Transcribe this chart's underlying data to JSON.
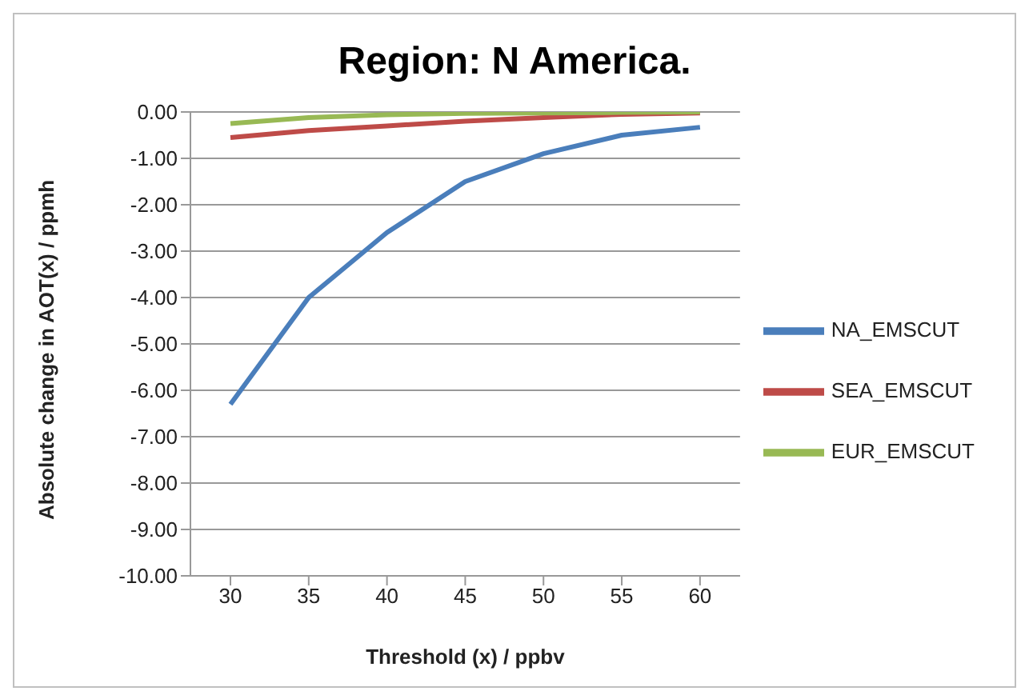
{
  "chart_data": {
    "type": "line",
    "title": "Region: N America.",
    "xlabel": "Threshold (x) / ppbv",
    "ylabel": "Absolute change  in AOT(x)  / ppmh",
    "categories": [
      "30",
      "35",
      "40",
      "45",
      "50",
      "55",
      "60"
    ],
    "series": [
      {
        "name": "NA_EMSCUT",
        "color": "#4a7ebb",
        "values": [
          -6.3,
          -4.0,
          -2.6,
          -1.5,
          -0.9,
          -0.5,
          -0.33
        ]
      },
      {
        "name": "SEA_EMSCUT",
        "color": "#be4b48",
        "values": [
          -0.55,
          -0.4,
          -0.3,
          -0.2,
          -0.12,
          -0.05,
          -0.02
        ]
      },
      {
        "name": "EUR_EMSCUT",
        "color": "#98b954",
        "values": [
          -0.25,
          -0.12,
          -0.06,
          -0.03,
          -0.02,
          -0.01,
          0
        ]
      }
    ],
    "ylim": [
      -10,
      0
    ],
    "yticks": [
      {
        "value": 0,
        "label": "0.00"
      },
      {
        "value": -1,
        "label": "-1.00"
      },
      {
        "value": -2,
        "label": "-2.00"
      },
      {
        "value": -3,
        "label": "-3.00"
      },
      {
        "value": -4,
        "label": "-4.00"
      },
      {
        "value": -5,
        "label": "-5.00"
      },
      {
        "value": -6,
        "label": "-6.00"
      },
      {
        "value": -7,
        "label": "-7.00"
      },
      {
        "value": -8,
        "label": "-8.00"
      },
      {
        "value": -9,
        "label": "-9.00"
      },
      {
        "value": -10,
        "label": "-10.00"
      }
    ],
    "grid": "y",
    "legend": "right",
    "marker": "none",
    "line_style": "solid"
  }
}
